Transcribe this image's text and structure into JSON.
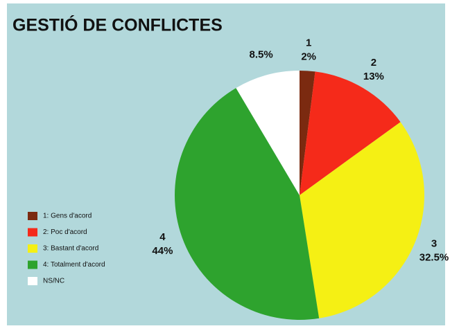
{
  "chart_data": {
    "type": "pie",
    "title": "GESTIÓ DE CONFLICTES",
    "categories": [
      "1: Gens d'acord",
      "2: Poc d'acord",
      "3: Bastant d'acord",
      "4: Totalment d'acord",
      "NS/NC"
    ],
    "slice_labels": [
      "1",
      "2",
      "3",
      "4",
      null
    ],
    "values": [
      2,
      13,
      32.5,
      44,
      8.5
    ],
    "value_labels": [
      "2%",
      "13%",
      "32.5%",
      "44%",
      "8.5%"
    ],
    "colors": [
      "#7b2a10",
      "#f52a1a",
      "#f5f014",
      "#2ea32e",
      "#ffffff"
    ],
    "legend": "left"
  }
}
